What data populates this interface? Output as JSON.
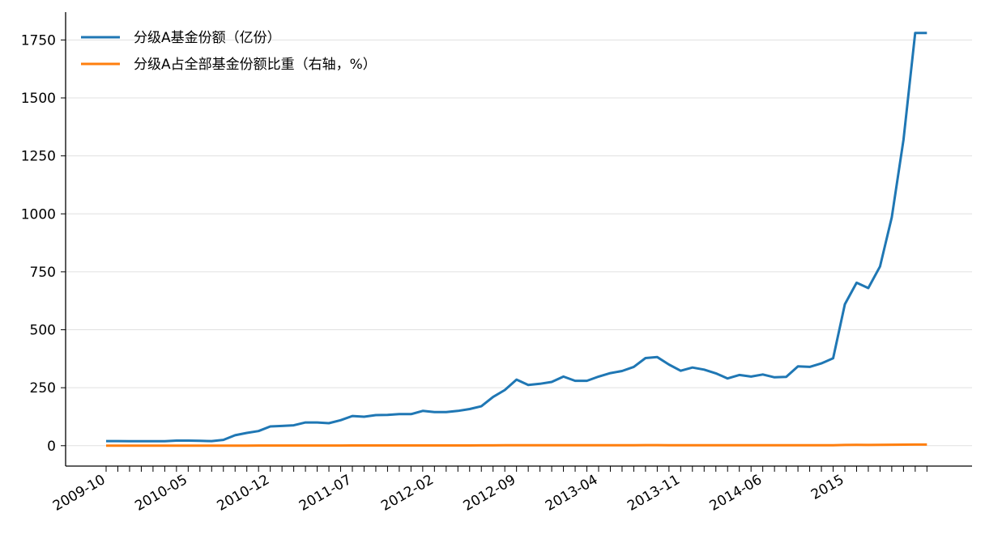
{
  "chart_data": {
    "type": "line",
    "categories": [
      "2009-10",
      null,
      null,
      null,
      null,
      null,
      null,
      "2010-05",
      null,
      null,
      null,
      null,
      null,
      null,
      "2010-12",
      null,
      null,
      null,
      null,
      null,
      null,
      "2011-07",
      null,
      null,
      null,
      null,
      null,
      null,
      "2012-02",
      null,
      null,
      null,
      null,
      null,
      null,
      "2012-09",
      null,
      null,
      null,
      null,
      null,
      null,
      "2013-04",
      null,
      null,
      null,
      null,
      null,
      null,
      "2013-11",
      null,
      null,
      null,
      null,
      null,
      null,
      "2014-06",
      null,
      null,
      null,
      null,
      null,
      null,
      "2015",
      null,
      null,
      null,
      null,
      null,
      null,
      null
    ],
    "series": [
      {
        "name": "分级A基金份额（亿份）",
        "color": "#1f77b4",
        "values": [
          20,
          20,
          19,
          19,
          19,
          19,
          22,
          22,
          21,
          20,
          25,
          45,
          55,
          63,
          83,
          85,
          88,
          100,
          100,
          97,
          110,
          128,
          125,
          132,
          133,
          136,
          136,
          150,
          145,
          145,
          150,
          158,
          170,
          210,
          240,
          285,
          262,
          267,
          275,
          298,
          280,
          280,
          298,
          313,
          322,
          340,
          378,
          382,
          350,
          323,
          337,
          328,
          312,
          290,
          305,
          298,
          307,
          295,
          297,
          342,
          340,
          355,
          377,
          610,
          703,
          680,
          773,
          985,
          1320,
          1780,
          1780
        ]
      },
      {
        "name": "分级A占全部基金份额比重（右轴，%）",
        "color": "#ff7f0e",
        "values": [
          0.2,
          0.2,
          0.2,
          0.2,
          0.2,
          0.2,
          0.2,
          0.2,
          0.2,
          0.2,
          0.3,
          0.4,
          0.4,
          0.5,
          0.6,
          0.6,
          0.6,
          0.7,
          0.7,
          0.7,
          0.8,
          0.9,
          0.9,
          0.9,
          0.9,
          0.9,
          0.9,
          1,
          1,
          1,
          1,
          1.1,
          1.2,
          1.4,
          1.6,
          1.8,
          1.7,
          1.7,
          1.8,
          1.9,
          1.8,
          1.8,
          1.9,
          2,
          2,
          2.1,
          2.3,
          2.3,
          2.2,
          2,
          2.1,
          2,
          1.9,
          1.8,
          1.9,
          1.8,
          1.9,
          1.8,
          1.8,
          2,
          2,
          2.1,
          2.2,
          3,
          3.3,
          3.2,
          3.5,
          4,
          4.5,
          5,
          5
        ]
      }
    ],
    "ylim": [
      -88,
      1870
    ],
    "yticks": [
      0,
      250,
      500,
      750,
      1000,
      1250,
      1500,
      1750
    ],
    "grid": true,
    "legend": "upper left"
  }
}
